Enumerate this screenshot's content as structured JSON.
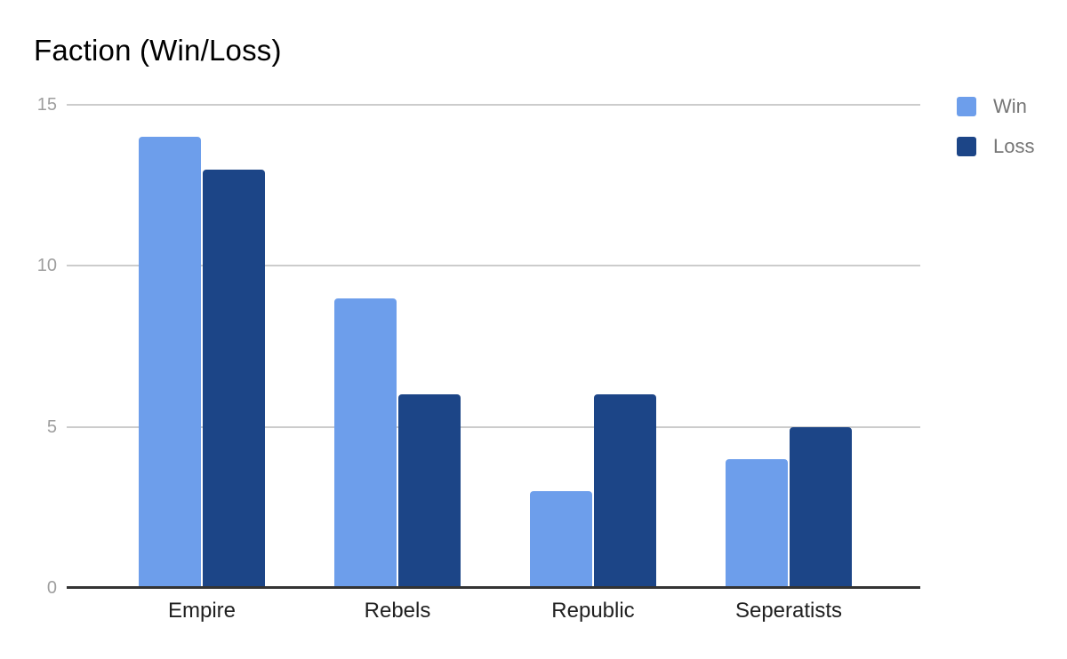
{
  "title": "Faction (Win/Loss)",
  "colors": {
    "win_series": "#6d9eeb",
    "loss_series": "#1c4587",
    "gridline": "#cccccc",
    "axis_line": "#333333",
    "y_tick_label": "#9e9e9e",
    "category_label": "#212121",
    "legend_label": "#757575",
    "background": "#ffffff",
    "title_color": "#000000"
  },
  "legend": {
    "position": "right",
    "items": [
      {
        "label": "Win",
        "color": "#6d9eeb"
      },
      {
        "label": "Loss",
        "color": "#1c4587"
      }
    ]
  },
  "chart_data": {
    "type": "bar",
    "title": "Faction (Win/Loss)",
    "categories": [
      "Empire",
      "Rebels",
      "Republic",
      "Seperatists"
    ],
    "series": [
      {
        "name": "Win",
        "color": "#6d9eeb",
        "values": [
          14,
          9,
          3,
          4
        ]
      },
      {
        "name": "Loss",
        "color": "#1c4587",
        "values": [
          13,
          6,
          6,
          5
        ]
      }
    ],
    "xlabel": "",
    "ylabel": "",
    "ylim": [
      0,
      15
    ],
    "yticks": [
      0,
      5,
      10,
      15
    ],
    "grid": true,
    "legend_position": "right"
  }
}
